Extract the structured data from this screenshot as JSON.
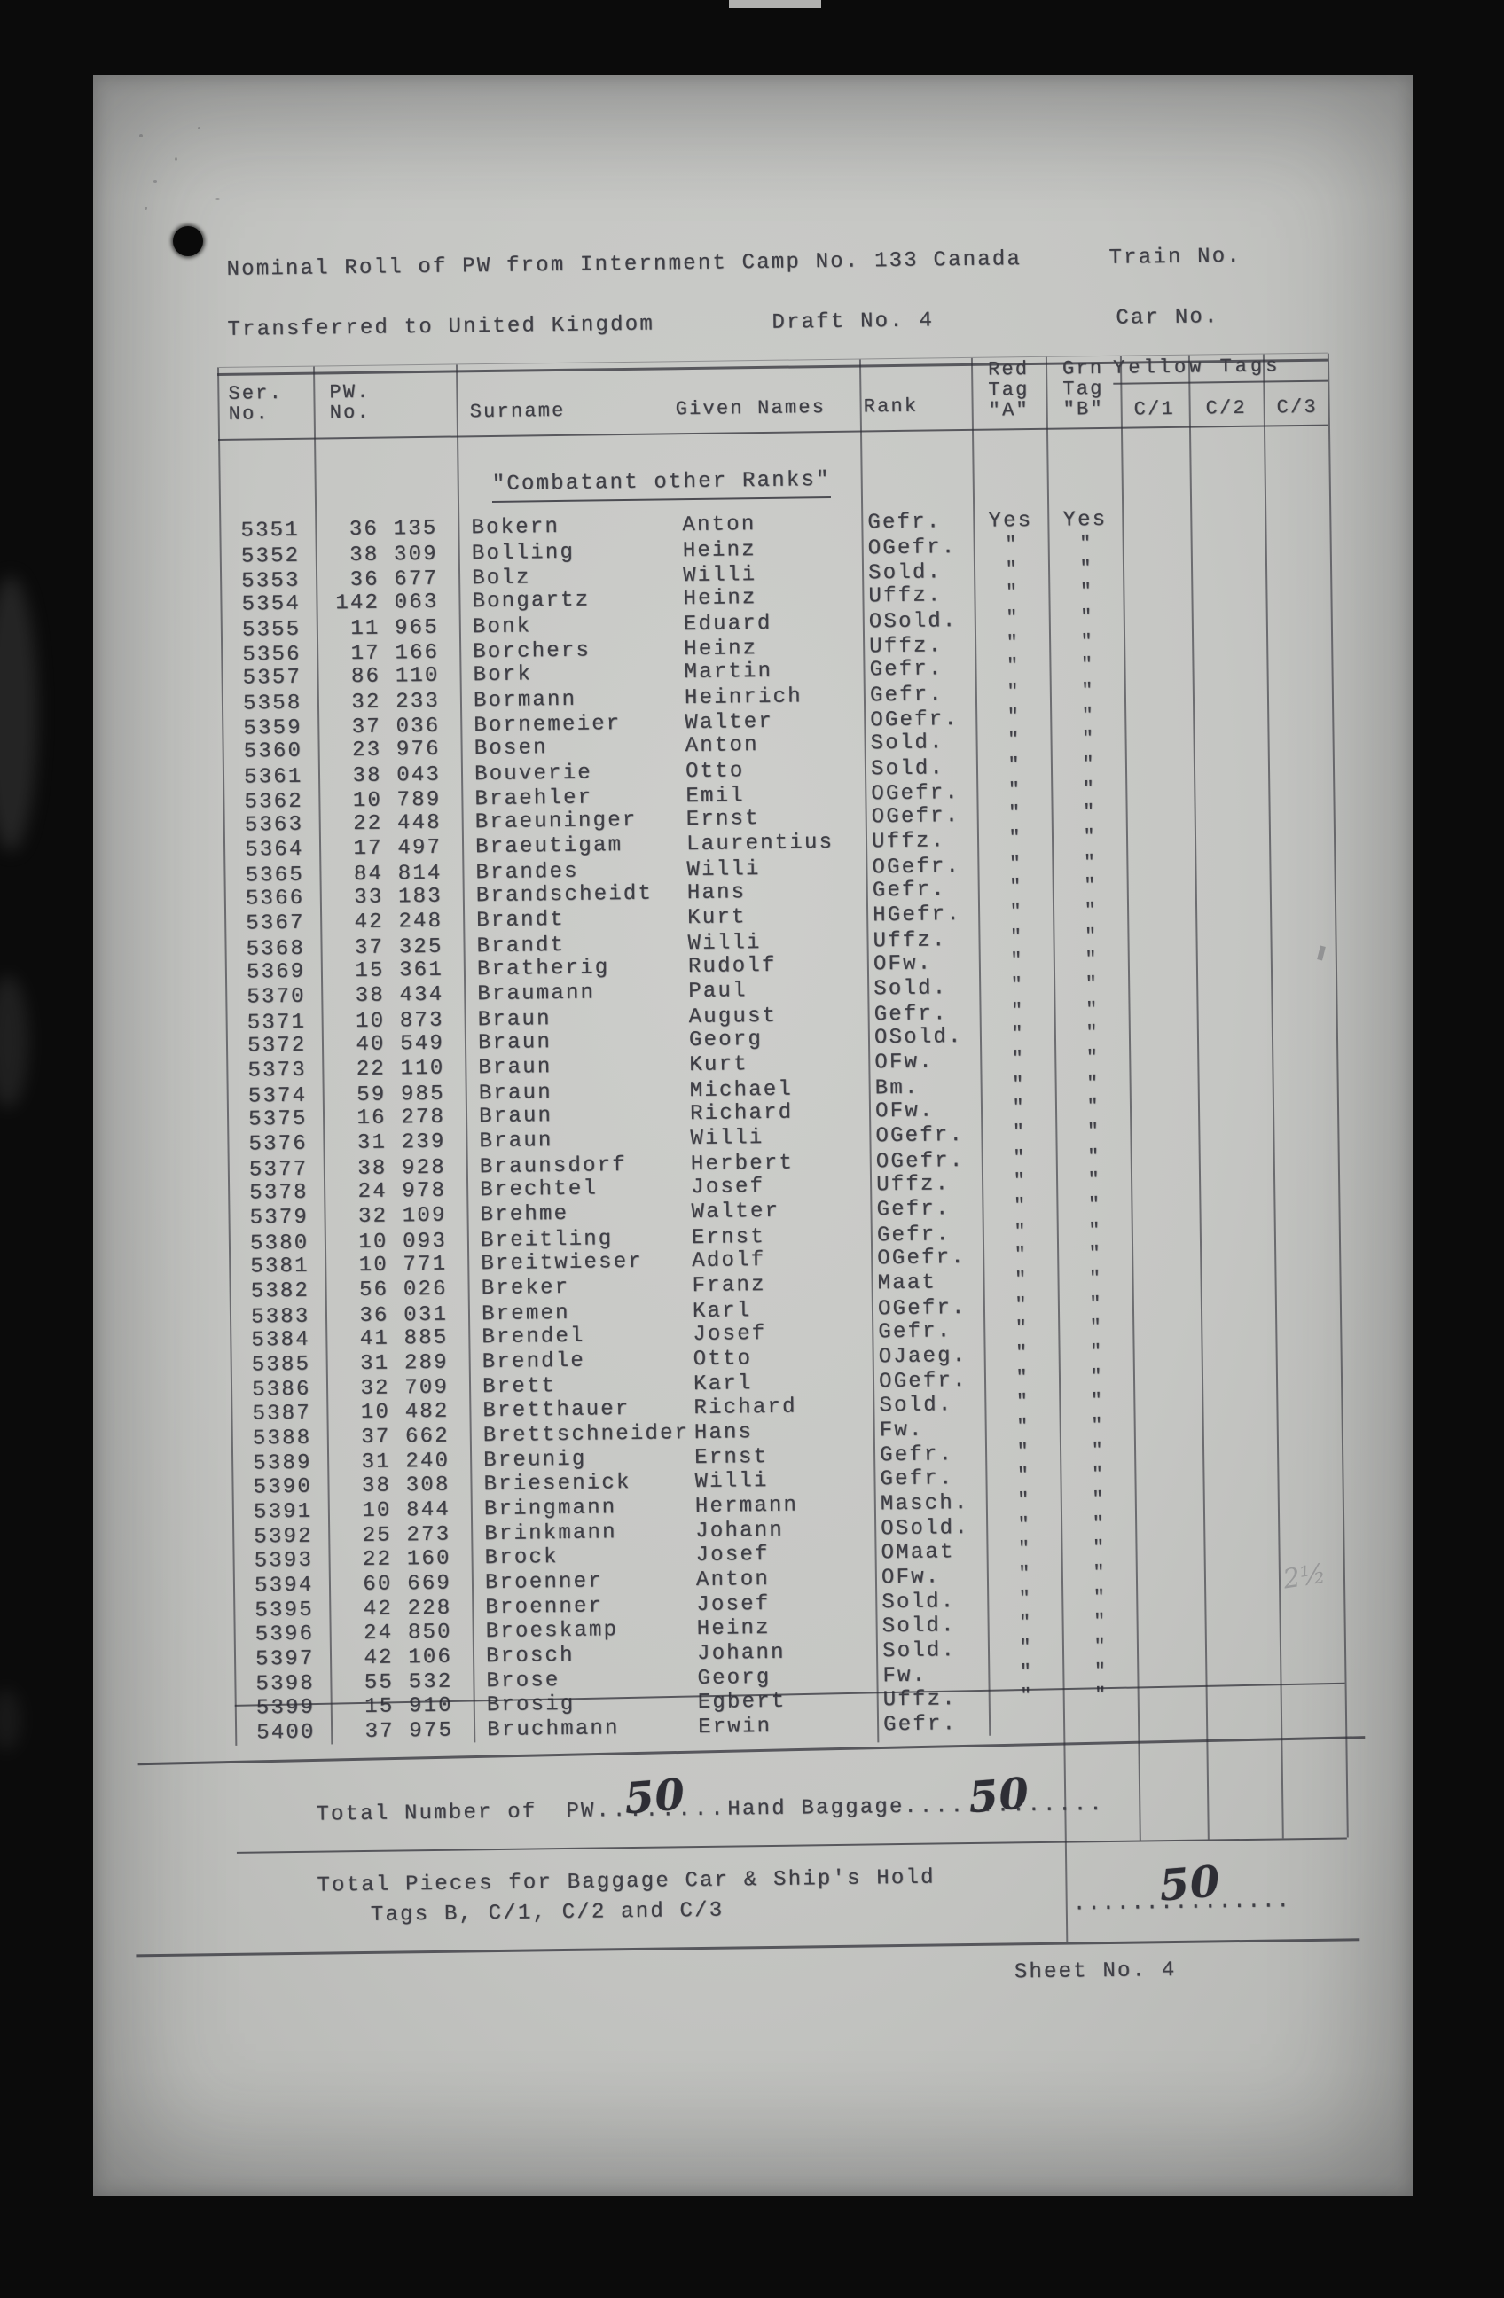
{
  "document": {
    "title1_left": "Nominal Roll of PW from Internment Camp No. 133 Canada",
    "title1_right": "Train No.",
    "title2_left": "Transferred to United Kingdom",
    "title2_mid": "Draft No. 4",
    "title2_right": "Car No.",
    "section_heading": "\"Combatant other Ranks\"",
    "sheet_label": "Sheet No. 4"
  },
  "table": {
    "headers": {
      "ser1": "Ser.",
      "ser2": "No.",
      "pw1": "PW.",
      "pw2": "No.",
      "surname": "Surname",
      "given_names": "Given Names",
      "rank": "Rank",
      "red": [
        "Red",
        "Tag",
        "\"A\""
      ],
      "grn": [
        "Grn",
        "Tag",
        "\"B\""
      ],
      "yellow": "Yellow Tags",
      "c1": "C/1",
      "c2": "C/2",
      "c3": "C/3"
    },
    "first_row_tags": {
      "red": "Yes",
      "grn": "Yes"
    },
    "ditto_mark": "\"",
    "rows": [
      {
        "ser": "5351",
        "pw": "36 135",
        "surname": "Bokern",
        "given": "Anton",
        "rank": "Gefr."
      },
      {
        "ser": "5352",
        "pw": "38 309",
        "surname": "Bolling",
        "given": "Heinz",
        "rank": "OGefr."
      },
      {
        "ser": "5353",
        "pw": "36 677",
        "surname": "Bolz",
        "given": "Willi",
        "rank": "Sold."
      },
      {
        "ser": "5354",
        "pw": "142 063",
        "surname": "Bongartz",
        "given": "Heinz",
        "rank": "Uffz."
      },
      {
        "ser": "5355",
        "pw": "11 965",
        "surname": "Bonk",
        "given": "Eduard",
        "rank": "OSold."
      },
      {
        "ser": "5356",
        "pw": "17 166",
        "surname": "Borchers",
        "given": "Heinz",
        "rank": "Uffz."
      },
      {
        "ser": "5357",
        "pw": "86 110",
        "surname": "Bork",
        "given": "Martin",
        "rank": "Gefr."
      },
      {
        "ser": "5358",
        "pw": "32 233",
        "surname": "Bormann",
        "given": "Heinrich",
        "rank": "Gefr."
      },
      {
        "ser": "5359",
        "pw": "37 036",
        "surname": "Bornemeier",
        "given": "Walter",
        "rank": "OGefr."
      },
      {
        "ser": "5360",
        "pw": "23 976",
        "surname": "Bosen",
        "given": "Anton",
        "rank": "Sold."
      },
      {
        "ser": "5361",
        "pw": "38 043",
        "surname": "Bouverie",
        "given": "Otto",
        "rank": "Sold."
      },
      {
        "ser": "5362",
        "pw": "10 789",
        "surname": "Braehler",
        "given": "Emil",
        "rank": "OGefr."
      },
      {
        "ser": "5363",
        "pw": "22 448",
        "surname": "Braeuninger",
        "given": "Ernst",
        "rank": "OGefr."
      },
      {
        "ser": "5364",
        "pw": "17 497",
        "surname": "Braeutigam",
        "given": "Laurentius",
        "rank": "Uffz."
      },
      {
        "ser": "5365",
        "pw": "84 814",
        "surname": "Brandes",
        "given": "Willi",
        "rank": "OGefr."
      },
      {
        "ser": "5366",
        "pw": "33 183",
        "surname": "Brandscheidt",
        "given": "Hans",
        "rank": "Gefr."
      },
      {
        "ser": "5367",
        "pw": "42 248",
        "surname": "Brandt",
        "given": "Kurt",
        "rank": "HGefr."
      },
      {
        "ser": "5368",
        "pw": "37 325",
        "surname": "Brandt",
        "given": "Willi",
        "rank": "Uffz."
      },
      {
        "ser": "5369",
        "pw": "15 361",
        "surname": "Bratherig",
        "given": "Rudolf",
        "rank": "OFw."
      },
      {
        "ser": "5370",
        "pw": "38 434",
        "surname": "Braumann",
        "given": "Paul",
        "rank": "Sold."
      },
      {
        "ser": "5371",
        "pw": "10 873",
        "surname": "Braun",
        "given": "August",
        "rank": "Gefr."
      },
      {
        "ser": "5372",
        "pw": "40 549",
        "surname": "Braun",
        "given": "Georg",
        "rank": "OSold."
      },
      {
        "ser": "5373",
        "pw": "22 110",
        "surname": "Braun",
        "given": "Kurt",
        "rank": "OFw."
      },
      {
        "ser": "5374",
        "pw": "59 985",
        "surname": "Braun",
        "given": "Michael",
        "rank": "Bm."
      },
      {
        "ser": "5375",
        "pw": "16 278",
        "surname": "Braun",
        "given": "Richard",
        "rank": "OFw."
      },
      {
        "ser": "5376",
        "pw": "31 239",
        "surname": "Braun",
        "given": "Willi",
        "rank": "OGefr."
      },
      {
        "ser": "5377",
        "pw": "38 928",
        "surname": "Braunsdorf",
        "given": "Herbert",
        "rank": "OGefr."
      },
      {
        "ser": "5378",
        "pw": "24 978",
        "surname": "Brechtel",
        "given": "Josef",
        "rank": "Uffz."
      },
      {
        "ser": "5379",
        "pw": "32 109",
        "surname": "Brehme",
        "given": "Walter",
        "rank": "Gefr."
      },
      {
        "ser": "5380",
        "pw": "10 093",
        "surname": "Breitling",
        "given": "Ernst",
        "rank": "Gefr."
      },
      {
        "ser": "5381",
        "pw": "10 771",
        "surname": "Breitwieser",
        "given": "Adolf",
        "rank": "OGefr."
      },
      {
        "ser": "5382",
        "pw": "56 026",
        "surname": "Breker",
        "given": "Franz",
        "rank": "Maat"
      },
      {
        "ser": "5383",
        "pw": "36 031",
        "surname": "Bremen",
        "given": "Karl",
        "rank": "OGefr."
      },
      {
        "ser": "5384",
        "pw": "41 885",
        "surname": "Brendel",
        "given": "Josef",
        "rank": "Gefr."
      },
      {
        "ser": "5385",
        "pw": "31 289",
        "surname": "Brendle",
        "given": "Otto",
        "rank": "OJaeg."
      },
      {
        "ser": "5386",
        "pw": "32 709",
        "surname": "Brett",
        "given": "Karl",
        "rank": "OGefr."
      },
      {
        "ser": "5387",
        "pw": "10 482",
        "surname": "Bretthauer",
        "given": "Richard",
        "rank": "Sold."
      },
      {
        "ser": "5388",
        "pw": "37 662",
        "surname": "Brettschneider",
        "given": "Hans",
        "rank": "Fw."
      },
      {
        "ser": "5389",
        "pw": "31 240",
        "surname": "Breunig",
        "given": "Ernst",
        "rank": "Gefr."
      },
      {
        "ser": "5390",
        "pw": "38 308",
        "surname": "Briesenick",
        "given": "Willi",
        "rank": "Gefr."
      },
      {
        "ser": "5391",
        "pw": "10 844",
        "surname": "Bringmann",
        "given": "Hermann",
        "rank": "Masch."
      },
      {
        "ser": "5392",
        "pw": "25 273",
        "surname": "Brinkmann",
        "given": "Johann",
        "rank": "OSold."
      },
      {
        "ser": "5393",
        "pw": "22 160",
        "surname": "Brock",
        "given": "Josef",
        "rank": "OMaat"
      },
      {
        "ser": "5394",
        "pw": "60 669",
        "surname": "Broenner",
        "given": "Anton",
        "rank": "OFw."
      },
      {
        "ser": "5395",
        "pw": "42 228",
        "surname": "Broenner",
        "given": "Josef",
        "rank": "Sold."
      },
      {
        "ser": "5396",
        "pw": "24 850",
        "surname": "Broeskamp",
        "given": "Heinz",
        "rank": "Sold."
      },
      {
        "ser": "5397",
        "pw": "42 106",
        "surname": "Brosch",
        "given": "Johann",
        "rank": "Sold."
      },
      {
        "ser": "5398",
        "pw": "55 532",
        "surname": "Brose",
        "given": "Georg",
        "rank": "Fw."
      },
      {
        "ser": "5399",
        "pw": "15 910",
        "surname": "Brosig",
        "given": "Egbert",
        "rank": "Uffz."
      },
      {
        "ser": "5400",
        "pw": "37 975",
        "surname": "Bruchmann",
        "given": "Erwin",
        "rank": "Gefr."
      }
    ]
  },
  "totals": {
    "line1_label": "Total Number of",
    "line1_pw": "PW",
    "line1_dots_a": "........",
    "line1_value": "50",
    "hand_baggage_label": "Hand Baggage",
    "line1_dots_b": ".............",
    "hand_baggage_value": "50",
    "pieces_label_1": "Total Pieces for Baggage Car & Ship's Hold",
    "pieces_label_2": "Tags B, C/1, C/2 and C/3",
    "pieces_dots": "...............",
    "pieces_value": "50"
  },
  "colors": {
    "paper": "#c5c6c3",
    "ink": "#3f3f46",
    "handwriting": "#2e2e35",
    "background": "#0b0b0b"
  }
}
